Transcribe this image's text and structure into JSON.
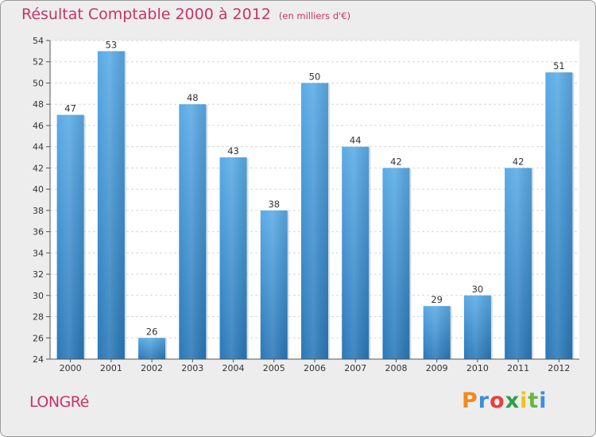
{
  "chart_data": {
    "type": "bar",
    "title": "Résultat Comptable 2000 à 2012",
    "subtitle": "(en milliers d'€)",
    "categories": [
      "2000",
      "2001",
      "2002",
      "2003",
      "2004",
      "2005",
      "2006",
      "2007",
      "2008",
      "2009",
      "2010",
      "2011",
      "2012"
    ],
    "values": [
      47,
      53,
      26,
      48,
      43,
      38,
      50,
      44,
      42,
      29,
      30,
      42,
      51
    ],
    "ylim": [
      24,
      54
    ],
    "yticks": [
      24,
      26,
      28,
      30,
      32,
      34,
      36,
      38,
      40,
      42,
      44,
      46,
      48,
      50,
      52,
      54
    ],
    "xlabel": "",
    "ylabel": "",
    "grid": "horizontal",
    "bar_color_top": "#5aabe6",
    "bar_color_bottom": "#2a78b8"
  },
  "commune": "LONGRé",
  "logo": {
    "letters": [
      "P",
      "r",
      "o",
      "x",
      "i",
      "t",
      "i"
    ]
  }
}
